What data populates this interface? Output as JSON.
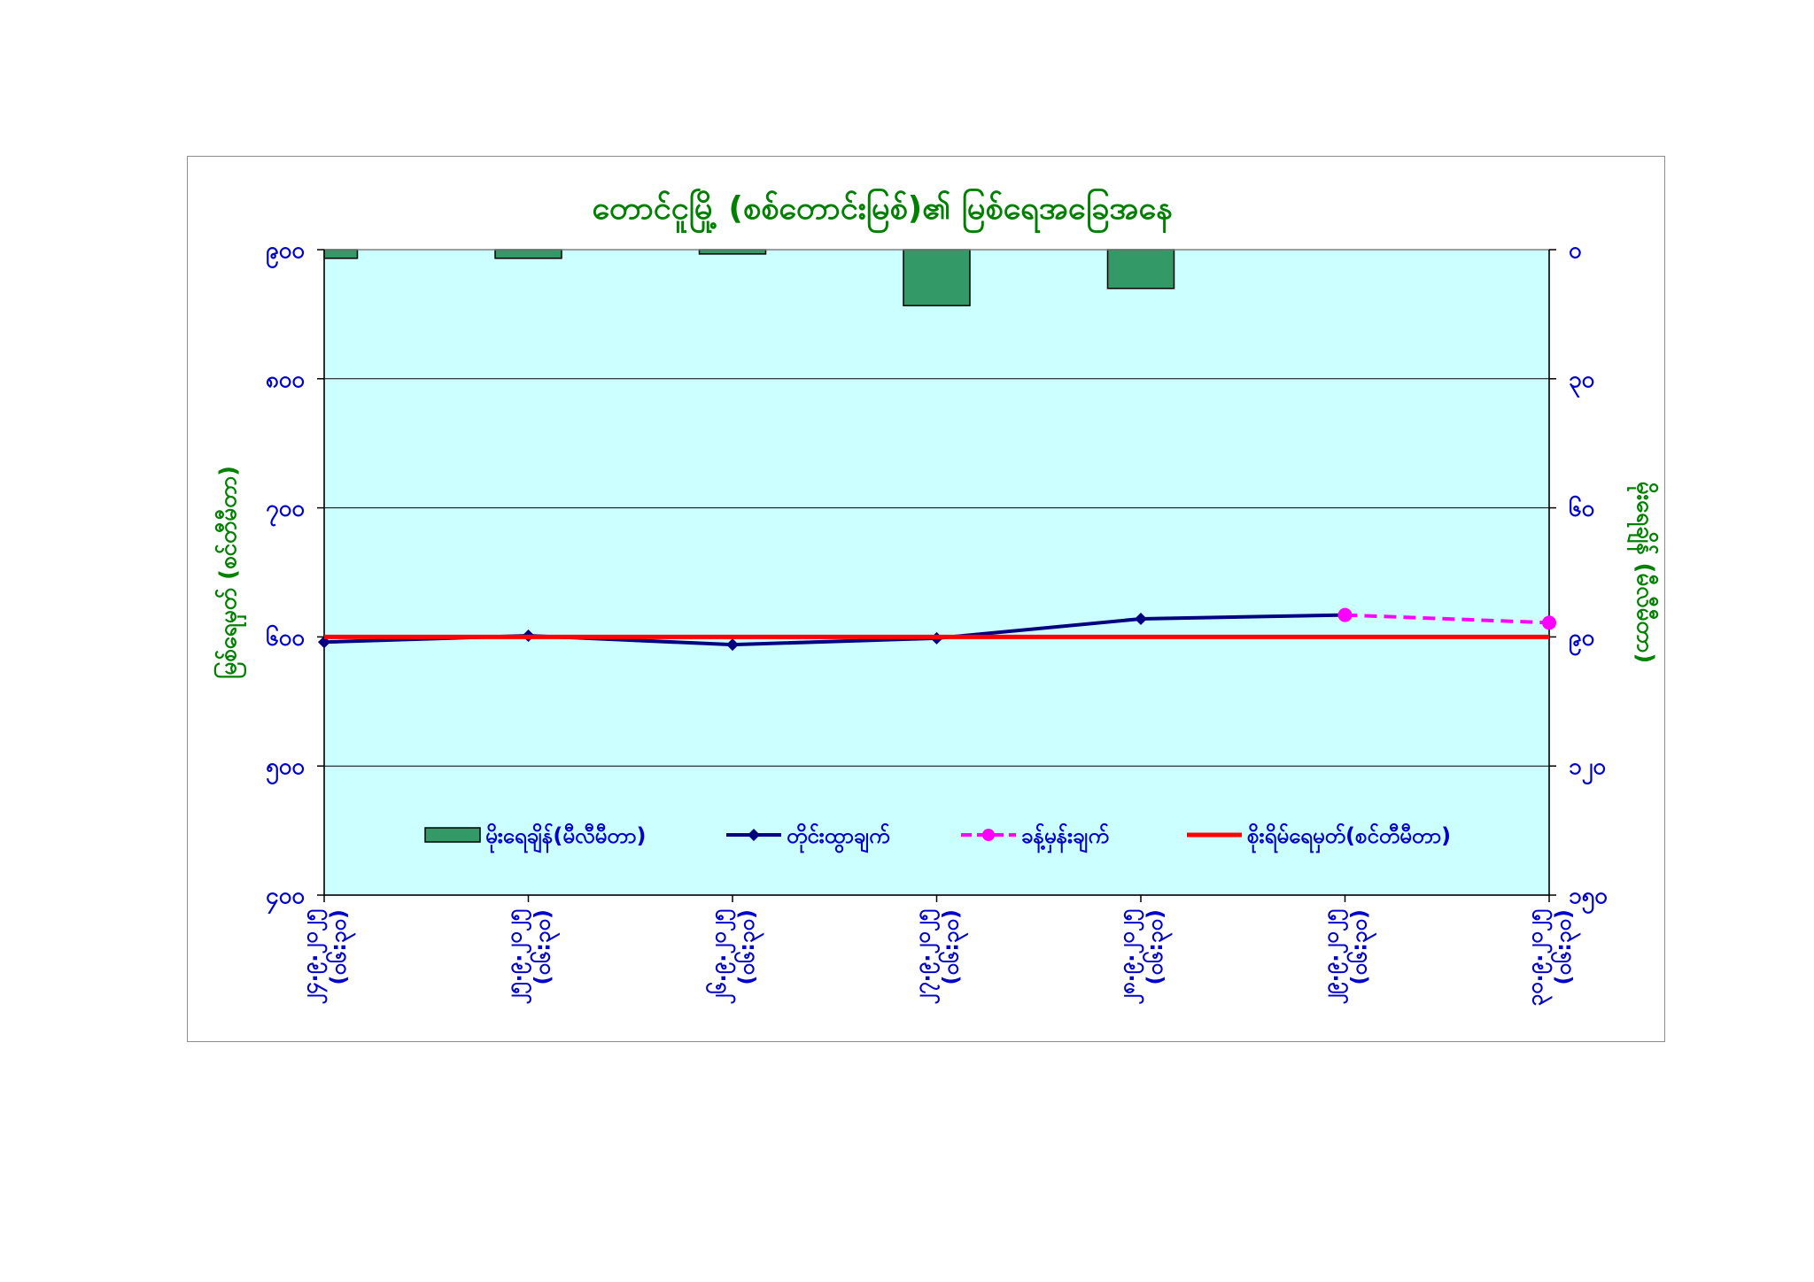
{
  "chart_data": {
    "type": "bar+line",
    "title": "တောင်ငူမြို့ (စစ်တောင်းမြစ်)၏ မြစ်ရေအခြေအနေ",
    "ylabel_left": "မြစ်ရေမှတ် (စင်တီမီတာ)",
    "ylabel_right": "မိုးရေချိန် (မီလီမီတာ)",
    "categories": [
      "၂၄.၉.၂၀၂၅ (ဝ၆:၃၀)",
      "၂၅.၉.၂၀၂၅ (ဝ၆:၃၀)",
      "၂၆.၉.၂၀၂၅ (ဝ၆:၃၀)",
      "၂၇.၉.၂၀၂၅ (ဝ၆:၃၀)",
      "၂၈.၉.၂၀၂၅ (ဝ၆:၃၀)",
      "၂၉.၉.၂၀၂၅ (ဝ၆:၃၀)",
      "၃၀.၉.၂၀၂၅ (ဝ၆:၃၀)"
    ],
    "left_axis": {
      "ticks": [
        "၉၀၀",
        "၈၀၀",
        "၇၀၀",
        "၆၀၀",
        "၅၀၀",
        "၄၀၀"
      ],
      "tick_values": [
        900,
        800,
        700,
        600,
        500,
        400
      ],
      "range": [
        400,
        900
      ]
    },
    "right_axis": {
      "ticks": [
        "၀",
        "၃၀",
        "၆၀",
        "၉၀",
        "၁၂၀",
        "၁၅၀"
      ],
      "tick_values": [
        0,
        30,
        60,
        90,
        120,
        150
      ],
      "range": [
        0,
        150
      ],
      "reversed": true
    },
    "series": [
      {
        "name": "မိုးရေချိန်(မီလီမီတာ)",
        "kind": "bar",
        "axis": "right",
        "values": [
          2,
          2,
          1,
          13,
          9,
          null,
          null
        ],
        "color": "#339966"
      },
      {
        "name": "တိုင်းထွာချက်",
        "kind": "line",
        "axis": "left",
        "values": [
          596,
          601,
          594,
          599,
          614,
          617,
          null
        ],
        "color": "#000080",
        "marker": "diamond"
      },
      {
        "name": "ခန့်မှန်းချက်",
        "kind": "line",
        "axis": "left",
        "values": [
          null,
          null,
          null,
          null,
          null,
          617,
          611
        ],
        "color": "#ff00ff",
        "dash": true,
        "marker": "circle"
      },
      {
        "name": "စိုးရိမ်ရေမှတ်(စင်တီမီတာ)",
        "kind": "line",
        "axis": "left",
        "values": [
          600,
          600,
          600,
          600,
          600,
          600,
          600
        ],
        "color": "#ff0000"
      }
    ],
    "grid": true,
    "plot_background": "#ccffff",
    "legend": "bottom inside plot"
  }
}
